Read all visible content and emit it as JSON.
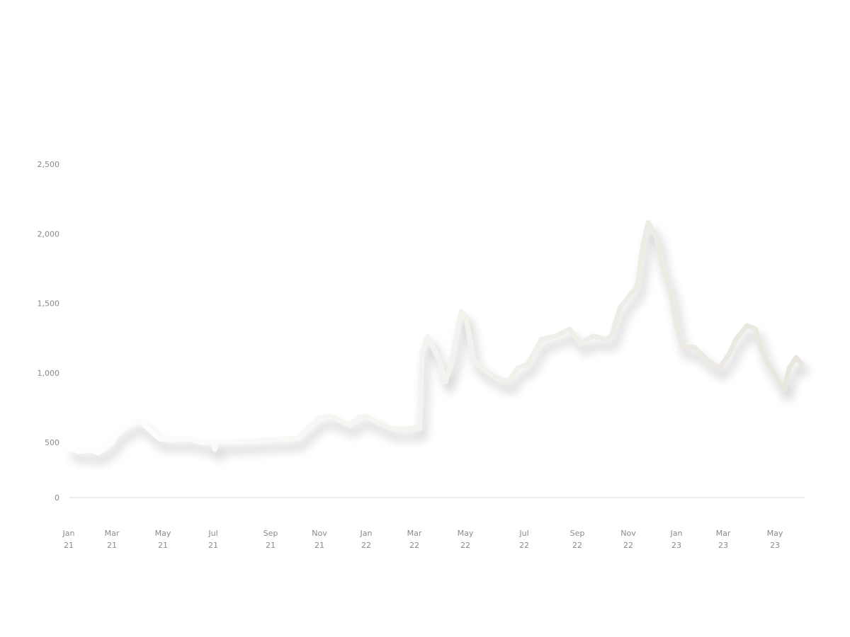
{
  "chart_data": {
    "type": "line",
    "title": "",
    "xlabel": "",
    "ylabel": "",
    "ylim": [
      0,
      2500
    ],
    "yticks": [
      0,
      500,
      1000,
      1500,
      2000,
      2500
    ],
    "ytick_labels": [
      "0",
      "500",
      "1,000",
      "1,500",
      "2,000",
      "2,500"
    ],
    "xticks": [
      {
        "date": "2021-01-01",
        "label": [
          "Jan",
          "21"
        ]
      },
      {
        "date": "2021-03-01",
        "label": [
          "Mar",
          "21"
        ]
      },
      {
        "date": "2021-05-01",
        "label": [
          "May",
          "21"
        ]
      },
      {
        "date": "2021-07-01",
        "label": [
          "Jul",
          "21"
        ]
      },
      {
        "date": "2021-09-01",
        "label": [
          "Sep",
          "21"
        ]
      },
      {
        "date": "2021-11-01",
        "label": [
          "Nov",
          "21"
        ]
      },
      {
        "date": "2022-01-01",
        "label": [
          "Jan",
          "22"
        ]
      },
      {
        "date": "2022-03-01",
        "label": [
          "Mar",
          "22"
        ]
      },
      {
        "date": "2022-05-01",
        "label": [
          "May",
          "22"
        ]
      },
      {
        "date": "2022-07-01",
        "label": [
          "Jul",
          "22"
        ]
      },
      {
        "date": "2022-09-01",
        "label": [
          "Sep",
          "22"
        ]
      },
      {
        "date": "2022-11-01",
        "label": [
          "Nov",
          "22"
        ]
      },
      {
        "date": "2023-01-01",
        "label": [
          "Jan",
          "23"
        ]
      },
      {
        "date": "2023-03-01",
        "label": [
          "Mar",
          "23"
        ]
      },
      {
        "date": "2023-05-01",
        "label": [
          "May",
          "23"
        ]
      }
    ],
    "grid": false,
    "legend": "none",
    "colors": {
      "line_start": "#ffffff",
      "line_end": "#e8e6de",
      "axis": "#e3e6e8",
      "tick_text": "#8a8a8a"
    },
    "series": [
      {
        "points": [
          [
            "2021-01-01",
            465
          ],
          [
            "2021-01-15",
            435
          ],
          [
            "2021-02-01",
            445
          ],
          [
            "2021-02-10",
            425
          ],
          [
            "2021-03-01",
            500
          ],
          [
            "2021-03-09",
            575
          ],
          [
            "2021-03-24",
            630
          ],
          [
            "2021-04-03",
            655
          ],
          [
            "2021-04-27",
            525
          ],
          [
            "2021-05-14",
            520
          ],
          [
            "2021-06-01",
            530
          ],
          [
            "2021-06-17",
            500
          ],
          [
            "2021-07-01",
            500
          ],
          [
            "2021-07-03",
            450
          ],
          [
            "2021-07-05",
            505
          ],
          [
            "2021-07-29",
            505
          ],
          [
            "2021-09-01",
            520
          ],
          [
            "2021-10-05",
            530
          ],
          [
            "2021-10-17",
            600
          ],
          [
            "2021-11-01",
            680
          ],
          [
            "2021-11-15",
            690
          ],
          [
            "2021-12-11",
            625
          ],
          [
            "2021-12-22",
            680
          ],
          [
            "2022-01-01",
            690
          ],
          [
            "2022-01-15",
            645
          ],
          [
            "2022-02-01",
            600
          ],
          [
            "2022-02-16",
            595
          ],
          [
            "2022-03-01",
            605
          ],
          [
            "2022-03-07",
            600
          ],
          [
            "2022-03-10",
            1135
          ],
          [
            "2022-03-17",
            1265
          ],
          [
            "2022-03-31",
            1085
          ],
          [
            "2022-04-07",
            935
          ],
          [
            "2022-04-14",
            1060
          ],
          [
            "2022-04-26",
            1440
          ],
          [
            "2022-05-01",
            1415
          ],
          [
            "2022-05-10",
            1085
          ],
          [
            "2022-05-18",
            1035
          ],
          [
            "2022-06-03",
            960
          ],
          [
            "2022-06-15",
            935
          ],
          [
            "2022-06-24",
            1035
          ],
          [
            "2022-07-05",
            1060
          ],
          [
            "2022-07-21",
            1240
          ],
          [
            "2022-08-07",
            1265
          ],
          [
            "2022-08-23",
            1315
          ],
          [
            "2022-09-05",
            1210
          ],
          [
            "2022-09-20",
            1265
          ],
          [
            "2022-10-05",
            1240
          ],
          [
            "2022-10-12",
            1265
          ],
          [
            "2022-10-22",
            1465
          ],
          [
            "2022-11-01",
            1545
          ],
          [
            "2022-11-12",
            1620
          ],
          [
            "2022-11-20",
            1925
          ],
          [
            "2022-11-26",
            2080
          ],
          [
            "2022-12-07",
            1975
          ],
          [
            "2022-12-13",
            1775
          ],
          [
            "2022-12-24",
            1595
          ],
          [
            "2023-01-01",
            1340
          ],
          [
            "2023-01-08",
            1185
          ],
          [
            "2023-01-23",
            1185
          ],
          [
            "2023-02-10",
            1085
          ],
          [
            "2023-02-24",
            1035
          ],
          [
            "2023-03-08",
            1135
          ],
          [
            "2023-03-16",
            1240
          ],
          [
            "2023-03-29",
            1340
          ],
          [
            "2023-04-08",
            1315
          ],
          [
            "2023-04-17",
            1135
          ],
          [
            "2023-05-01",
            985
          ],
          [
            "2023-05-12",
            880
          ],
          [
            "2023-05-18",
            1035
          ],
          [
            "2023-05-26",
            1110
          ],
          [
            "2023-06-02",
            1060
          ]
        ]
      }
    ]
  }
}
